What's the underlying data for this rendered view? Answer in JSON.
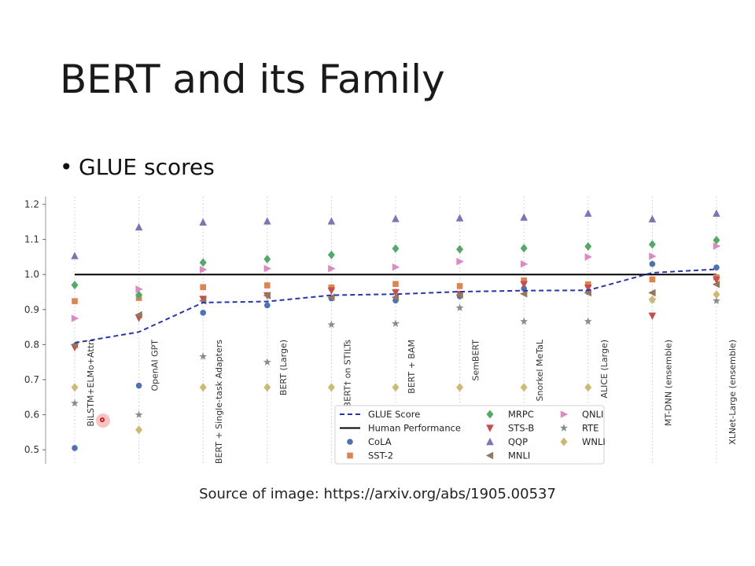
{
  "slide": {
    "title": "BERT and its Family",
    "bullet": "GLUE scores",
    "bullet_marker": "•",
    "source": "Source of image: https://arxiv.org/abs/1905.00537"
  },
  "chart_data": {
    "type": "scatter",
    "title": "",
    "xlabel": "",
    "ylabel": "",
    "ylim": [
      0.48,
      1.22
    ],
    "yticks": [
      0.5,
      0.6,
      0.7,
      0.8,
      0.9,
      1.0,
      1.1,
      1.2
    ],
    "ytick_labels": [
      "0.5",
      "0.6",
      "0.7",
      "0.8",
      "0.9",
      "1.0",
      "1.1",
      "1.2"
    ],
    "grid": "vertical-dotted",
    "legend_position": "bottom-center",
    "categories": [
      "BiLSTM+ELMo+Attn",
      "OpenAI GPT",
      "BERT + Single-task Adapters",
      "BERT (Large)",
      "BERT† on STILTs",
      "BERT + BAM",
      "SemBERT",
      "Snorkel MeTaL",
      "ALICE (Large)",
      "MT-DNN (ensemble)",
      "XLNet-Large (ensemble)"
    ],
    "reference_line": {
      "name": "Human Performance",
      "value": 1.0,
      "color": "#000000"
    },
    "series": [
      {
        "name": "GLUE Score",
        "marker": "dashed-line",
        "color": "#2a36a8",
        "values": [
          0.805,
          0.836,
          0.92,
          0.923,
          0.941,
          0.944,
          0.951,
          0.954,
          0.955,
          1.005,
          1.015
        ]
      },
      {
        "name": "CoLA",
        "marker": "circle",
        "color": "#4c72b0",
        "values": [
          0.505,
          0.683,
          0.891,
          0.912,
          0.932,
          0.926,
          0.938,
          0.96,
          0.95,
          1.03,
          1.02
        ]
      },
      {
        "name": "SST-2",
        "marker": "square",
        "color": "#dd8452",
        "values": [
          0.924,
          0.933,
          0.964,
          0.969,
          0.963,
          0.973,
          0.967,
          0.983,
          0.972,
          0.986,
          0.992
        ]
      },
      {
        "name": "MRPC",
        "marker": "diamond",
        "color": "#55a868",
        "values": [
          0.97,
          0.942,
          1.034,
          1.044,
          1.056,
          1.074,
          1.072,
          1.075,
          1.08,
          1.086,
          1.098
        ]
      },
      {
        "name": "STS-B",
        "marker": "triangle-down",
        "color": "#c44e52",
        "values": [
          0.792,
          0.876,
          0.93,
          0.94,
          0.954,
          0.949,
          0.944,
          0.972,
          0.962,
          0.882,
          0.985
        ]
      },
      {
        "name": "QQP",
        "marker": "triangle-up",
        "color": "#8172b2",
        "values": [
          1.053,
          1.135,
          1.149,
          1.152,
          1.152,
          1.159,
          1.161,
          1.163,
          1.174,
          1.158,
          1.174
        ]
      },
      {
        "name": "MNLI",
        "marker": "triangle-left",
        "color": "#937860",
        "values": [
          0.8,
          0.885,
          0.925,
          0.94,
          0.935,
          0.935,
          0.942,
          0.945,
          0.948,
          0.948,
          0.972
        ]
      },
      {
        "name": "QNLI",
        "marker": "triangle-right",
        "color": "#da8bc3",
        "values": [
          0.875,
          0.958,
          1.014,
          1.017,
          1.017,
          1.021,
          1.037,
          1.03,
          1.05,
          1.052,
          1.081
        ]
      },
      {
        "name": "RTE",
        "marker": "star",
        "color": "#8c8c8c",
        "values": [
          0.633,
          0.6,
          0.766,
          0.75,
          0.857,
          0.86,
          0.905,
          0.866,
          0.866,
          0.928,
          0.925
        ]
      },
      {
        "name": "WNLI",
        "marker": "diamond",
        "color": "#ccb974",
        "values": [
          0.678,
          0.557,
          0.678,
          0.678,
          0.678,
          0.678,
          0.678,
          0.678,
          0.678,
          0.928,
          0.943
        ]
      }
    ]
  }
}
